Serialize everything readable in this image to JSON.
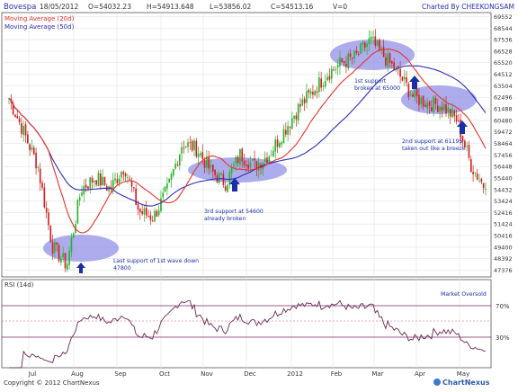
{
  "header": {
    "symbol": "Bovespa",
    "date": "18/05/2012",
    "open": "O=54032.23",
    "high": "H=54913.648",
    "low": "L=53856.02",
    "close": "C=54513.16",
    "volume": "V=0",
    "charted_by": "Charted By CHEEKONGSAM"
  },
  "legend": {
    "ma20": "Moving Average (20d)",
    "ma50": "Moving Average (50d)",
    "ma20_color": "#e8332a",
    "ma50_color": "#2b2fb5"
  },
  "annotations": {
    "first_support": [
      "1st support",
      "broken at 65000"
    ],
    "second_support": [
      "2nd support at 61195",
      "taken out like a breeze"
    ],
    "third_support": [
      "3rd support at 54600",
      "already broken"
    ],
    "last_support": [
      "Last support of 1st wave down",
      "47800"
    ],
    "market_oversold": "Market Oversold"
  },
  "rsi": {
    "label": "RSI (14d)",
    "levels": [
      "70%",
      "30%"
    ]
  },
  "footer": {
    "copyright": "Copyright © 2012 ChartNexus",
    "brand": "ChartNexus"
  },
  "chart_data": {
    "type": "candlestick",
    "x_months": [
      "Jul",
      "Aug",
      "Sep",
      "Oct",
      "Nov",
      "Dec",
      "2012",
      "Feb",
      "Mar",
      "Apr",
      "May"
    ],
    "y_ticks": [
      47376,
      48392,
      49400,
      50416,
      51424,
      52416,
      53424,
      54432,
      55440,
      56448,
      57456,
      58464,
      59472,
      60480,
      61488,
      62496,
      63504,
      64512,
      65520,
      66528,
      67536,
      68544,
      69552
    ],
    "ylim": [
      46800,
      69900
    ],
    "ohlc_close_approx": [
      {
        "x": "early Jul",
        "close": 62400
      },
      {
        "x": "mid Jul",
        "close": 59500
      },
      {
        "x": "late Jul",
        "close": 56500
      },
      {
        "x": "early Aug",
        "close": 49500
      },
      {
        "x": "Aug low",
        "close": 47800
      },
      {
        "x": "mid Aug",
        "close": 54500
      },
      {
        "x": "late Aug",
        "close": 55500
      },
      {
        "x": "early Sep",
        "close": 54500
      },
      {
        "x": "mid Sep",
        "close": 56500
      },
      {
        "x": "late Sep",
        "close": 52500
      },
      {
        "x": "early Oct",
        "close": 52000
      },
      {
        "x": "mid Oct",
        "close": 54500
      },
      {
        "x": "late Oct",
        "close": 58500
      },
      {
        "x": "early Nov",
        "close": 58000
      },
      {
        "x": "mid Nov",
        "close": 56000
      },
      {
        "x": "late Nov",
        "close": 55000
      },
      {
        "x": "early Dec",
        "close": 57500
      },
      {
        "x": "mid Dec",
        "close": 56500
      },
      {
        "x": "late Dec",
        "close": 57500
      },
      {
        "x": "early Jan",
        "close": 59500
      },
      {
        "x": "mid Jan",
        "close": 61500
      },
      {
        "x": "late Jan",
        "close": 63000
      },
      {
        "x": "early Feb",
        "close": 64500
      },
      {
        "x": "mid Feb",
        "close": 65500
      },
      {
        "x": "late Feb",
        "close": 66000
      },
      {
        "x": "early Mar",
        "close": 67500
      },
      {
        "x": "mid Mar",
        "close": 66000
      },
      {
        "x": "late Mar",
        "close": 64500
      },
      {
        "x": "early Apr",
        "close": 62500
      },
      {
        "x": "mid Apr",
        "close": 62000
      },
      {
        "x": "late Apr",
        "close": 61800
      },
      {
        "x": "early May",
        "close": 60500
      },
      {
        "x": "mid May",
        "close": 56500
      },
      {
        "x": "18 May",
        "close": 54513
      }
    ],
    "series": [
      {
        "name": "Moving Average (20d)",
        "color": "#e8332a"
      },
      {
        "name": "Moving Average (50d)",
        "color": "#2b2fb5"
      }
    ],
    "rsi_ylim": [
      0,
      100
    ],
    "rsi_levels": [
      70,
      50,
      30
    ]
  }
}
